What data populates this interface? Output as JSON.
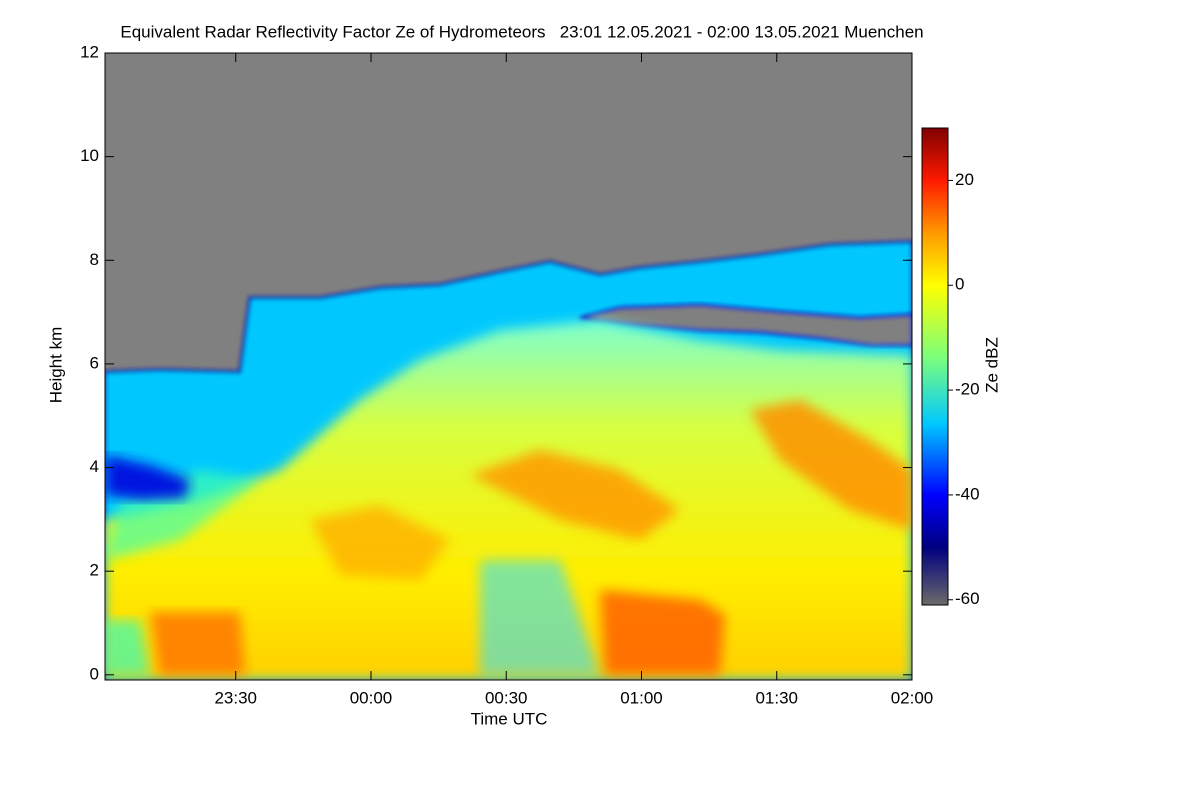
{
  "chart_data": {
    "type": "heatmap",
    "title": "Equivalent Radar Reflectivity Factor Ze of Hydrometeors   23:01 12.05.2021 - 02:00 13.05.2021 Muenchen",
    "x_label": "Time UTC",
    "y_label": "Height km",
    "xlim": [
      1,
      180
    ],
    "xticks": [
      {
        "value": 30,
        "label": "23:30"
      },
      {
        "value": 60,
        "label": "00:00"
      },
      {
        "value": 90,
        "label": "00:30"
      },
      {
        "value": 120,
        "label": "01:00"
      },
      {
        "value": 150,
        "label": "01:30"
      },
      {
        "value": 180,
        "label": "02:00"
      }
    ],
    "ylim": [
      -0.1,
      12
    ],
    "yticks": [
      0,
      2,
      4,
      6,
      8,
      10,
      12
    ],
    "colorbar": {
      "label": "Ze dBZ",
      "lim": [
        -61,
        30
      ],
      "ticks": [
        -60,
        -40,
        -20,
        0,
        20
      ]
    }
  }
}
